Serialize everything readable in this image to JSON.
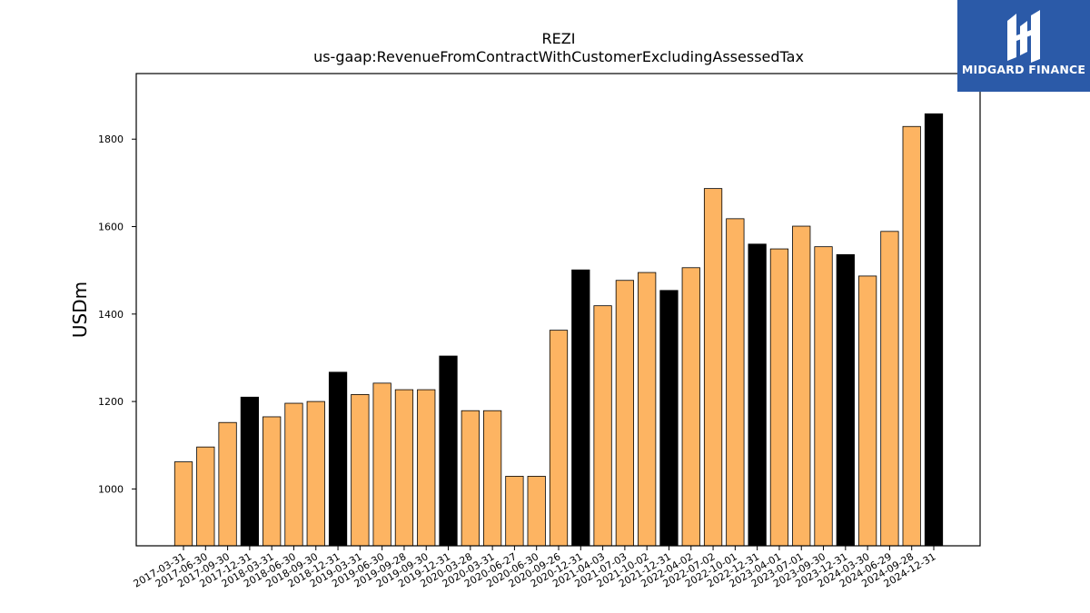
{
  "brand": {
    "name": "MIDGARD FINANCE",
    "color": "#2b5aa8"
  },
  "chart_data": {
    "type": "bar",
    "title": "REZI",
    "subtitle": "us-gaap:RevenueFromContractWithCustomerExcludingAssessedTax",
    "xlabel": "",
    "ylabel": "USDm",
    "ylim": [
      870,
      1950
    ],
    "yticks": [
      1000,
      1200,
      1400,
      1600,
      1800
    ],
    "grid": false,
    "colors": {
      "quarter": "#fdb462",
      "year_end": "#000000",
      "edge": "#000000"
    },
    "categories": [
      "2017-03-31",
      "2017-06-30",
      "2017-09-30",
      "2017-12-31",
      "2018-03-31",
      "2018-06-30",
      "2018-09-30",
      "2018-12-31",
      "2019-03-31",
      "2019-06-30",
      "2019-09-28",
      "2019-09-30",
      "2019-12-31",
      "2020-03-28",
      "2020-03-31",
      "2020-06-27",
      "2020-06-30",
      "2020-09-26",
      "2020-12-31",
      "2021-04-03",
      "2021-07-03",
      "2021-10-02",
      "2021-12-31",
      "2022-04-02",
      "2022-07-02",
      "2022-10-01",
      "2022-12-31",
      "2023-04-01",
      "2023-07-01",
      "2023-09-30",
      "2023-12-31",
      "2024-03-30",
      "2024-06-29",
      "2024-09-28",
      "2024-12-31"
    ],
    "values": [
      1062,
      1096,
      1152,
      1210,
      1165,
      1196,
      1200,
      1267,
      1216,
      1242,
      1227,
      1227,
      1304,
      1179,
      1179,
      1029,
      1029,
      1363,
      1501,
      1419,
      1477,
      1495,
      1454,
      1506,
      1687,
      1618,
      1560,
      1549,
      1601,
      1554,
      1536,
      1487,
      1589,
      1829,
      1858
    ],
    "year_end": [
      false,
      false,
      false,
      true,
      false,
      false,
      false,
      true,
      false,
      false,
      false,
      false,
      true,
      false,
      false,
      false,
      false,
      false,
      true,
      false,
      false,
      false,
      true,
      false,
      false,
      false,
      true,
      false,
      false,
      false,
      true,
      false,
      false,
      false,
      true
    ]
  }
}
